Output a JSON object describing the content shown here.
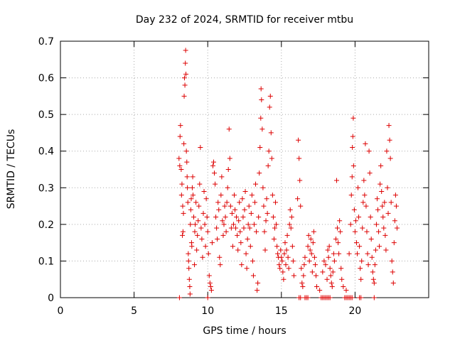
{
  "chart_data": {
    "type": "scatter",
    "title": "Day 232 of 2024, SRMTID for receiver mtbu",
    "xlabel": "GPS time / hours",
    "ylabel": "SRMTID / TECUs",
    "xlim": [
      0,
      25
    ],
    "ylim": [
      0,
      0.7
    ],
    "xticks": [
      0,
      5,
      10,
      15,
      20
    ],
    "yticks": [
      0,
      0.1,
      0.2,
      0.3,
      0.4,
      0.5,
      0.6,
      0.7
    ],
    "ytick_labels": [
      "0",
      "0.1",
      "0.2",
      "0.3",
      "0.4",
      "0.5",
      "0.6",
      "0.7"
    ],
    "grid": true,
    "marker": "+",
    "series_color": "#dd0000",
    "points": [
      [
        8.05,
        0.38
      ],
      [
        8.1,
        0.36
      ],
      [
        8.12,
        0.44
      ],
      [
        8.15,
        0.47
      ],
      [
        8.2,
        0.35
      ],
      [
        8.22,
        0.28
      ],
      [
        8.25,
        0.31
      ],
      [
        8.28,
        0.17
      ],
      [
        8.3,
        0.25
      ],
      [
        8.32,
        0.18
      ],
      [
        8.35,
        0.23
      ],
      [
        8.38,
        0.42
      ],
      [
        8.4,
        0.55
      ],
      [
        8.42,
        0.6
      ],
      [
        8.45,
        0.58
      ],
      [
        8.48,
        0.64
      ],
      [
        8.5,
        0.675
      ],
      [
        8.52,
        0.61
      ],
      [
        8.55,
        0.4
      ],
      [
        8.58,
        0.37
      ],
      [
        8.6,
        0.33
      ],
      [
        8.62,
        0.3
      ],
      [
        8.65,
        0.26
      ],
      [
        8.68,
        0.12
      ],
      [
        8.7,
        0.1
      ],
      [
        8.72,
        0.08
      ],
      [
        8.75,
        0.05
      ],
      [
        8.78,
        0.03
      ],
      [
        8.8,
        0.01
      ],
      [
        8.82,
        0.2
      ],
      [
        8.85,
        0.24
      ],
      [
        8.88,
        0.27
      ],
      [
        8.9,
        0.15
      ],
      [
        8.92,
        0.14
      ],
      [
        8.95,
        0.3
      ],
      [
        8.98,
        0.33
      ],
      [
        9.0,
        0.28
      ],
      [
        9.05,
        0.22
      ],
      [
        9.1,
        0.09
      ],
      [
        9.12,
        0.18
      ],
      [
        9.15,
        0.2
      ],
      [
        9.2,
        0.26
      ],
      [
        9.25,
        0.13
      ],
      [
        9.3,
        0.17
      ],
      [
        9.35,
        0.21
      ],
      [
        9.4,
        0.25
      ],
      [
        9.45,
        0.31
      ],
      [
        9.5,
        0.41
      ],
      [
        9.55,
        0.19
      ],
      [
        9.6,
        0.16
      ],
      [
        9.65,
        0.11
      ],
      [
        9.7,
        0.23
      ],
      [
        9.75,
        0.29
      ],
      [
        9.8,
        0.2
      ],
      [
        9.85,
        0.14
      ],
      [
        9.9,
        0.27
      ],
      [
        9.95,
        0.22
      ],
      [
        10.0,
        0.18
      ],
      [
        10.05,
        0.12
      ],
      [
        10.1,
        0.06
      ],
      [
        10.15,
        0.04
      ],
      [
        10.2,
        0.03
      ],
      [
        10.25,
        0.02
      ],
      [
        10.3,
        0.15
      ],
      [
        10.35,
        0.36
      ],
      [
        10.4,
        0.37
      ],
      [
        10.45,
        0.34
      ],
      [
        10.5,
        0.31
      ],
      [
        10.55,
        0.22
      ],
      [
        10.6,
        0.19
      ],
      [
        10.65,
        0.16
      ],
      [
        10.7,
        0.26
      ],
      [
        10.75,
        0.24
      ],
      [
        10.8,
        0.11
      ],
      [
        10.85,
        0.09
      ],
      [
        10.9,
        0.28
      ],
      [
        10.95,
        0.33
      ],
      [
        11.0,
        0.21
      ],
      [
        11.05,
        0.17
      ],
      [
        11.1,
        0.2
      ],
      [
        11.15,
        0.25
      ],
      [
        11.2,
        0.22
      ],
      [
        11.25,
        0.18
      ],
      [
        11.3,
        0.26
      ],
      [
        11.35,
        0.3
      ],
      [
        11.4,
        0.35
      ],
      [
        11.45,
        0.46
      ],
      [
        11.5,
        0.38
      ],
      [
        11.55,
        0.25
      ],
      [
        11.6,
        0.19
      ],
      [
        11.65,
        0.23
      ],
      [
        11.7,
        0.14
      ],
      [
        11.75,
        0.2
      ],
      [
        11.8,
        0.28
      ],
      [
        11.85,
        0.24
      ],
      [
        11.9,
        0.19
      ],
      [
        11.95,
        0.22
      ],
      [
        12.0,
        0.17
      ],
      [
        12.05,
        0.13
      ],
      [
        12.1,
        0.21
      ],
      [
        12.15,
        0.26
      ],
      [
        12.2,
        0.18
      ],
      [
        12.25,
        0.15
      ],
      [
        12.3,
        0.09
      ],
      [
        12.35,
        0.27
      ],
      [
        12.4,
        0.22
      ],
      [
        12.45,
        0.19
      ],
      [
        12.5,
        0.24
      ],
      [
        12.55,
        0.29
      ],
      [
        12.6,
        0.12
      ],
      [
        12.65,
        0.08
      ],
      [
        12.7,
        0.16
      ],
      [
        12.75,
        0.2
      ],
      [
        12.8,
        0.25
      ],
      [
        12.85,
        0.19
      ],
      [
        12.9,
        0.14
      ],
      [
        12.95,
        0.23
      ],
      [
        13.0,
        0.28
      ],
      [
        13.05,
        0.1
      ],
      [
        13.1,
        0.06
      ],
      [
        13.15,
        0.2
      ],
      [
        13.2,
        0.26
      ],
      [
        13.25,
        0.31
      ],
      [
        13.3,
        0.18
      ],
      [
        13.35,
        0.02
      ],
      [
        13.4,
        0.04
      ],
      [
        13.45,
        0.22
      ],
      [
        13.5,
        0.34
      ],
      [
        13.55,
        0.41
      ],
      [
        13.6,
        0.49
      ],
      [
        13.62,
        0.57
      ],
      [
        13.65,
        0.54
      ],
      [
        13.7,
        0.46
      ],
      [
        13.75,
        0.3
      ],
      [
        13.8,
        0.25
      ],
      [
        13.85,
        0.18
      ],
      [
        13.9,
        0.13
      ],
      [
        13.95,
        0.21
      ],
      [
        14.0,
        0.27
      ],
      [
        14.05,
        0.23
      ],
      [
        14.1,
        0.36
      ],
      [
        14.15,
        0.4
      ],
      [
        14.2,
        0.52
      ],
      [
        14.25,
        0.55
      ],
      [
        14.3,
        0.45
      ],
      [
        14.35,
        0.38
      ],
      [
        14.4,
        0.28
      ],
      [
        14.45,
        0.22
      ],
      [
        14.5,
        0.16
      ],
      [
        14.55,
        0.19
      ],
      [
        14.6,
        0.26
      ],
      [
        14.65,
        0.2
      ],
      [
        14.7,
        0.14
      ],
      [
        14.75,
        0.12
      ],
      [
        14.8,
        0.11
      ],
      [
        14.85,
        0.09
      ],
      [
        14.9,
        0.08
      ],
      [
        14.95,
        0.13
      ],
      [
        15.0,
        0.11
      ],
      [
        15.05,
        0.1
      ],
      [
        15.1,
        0.07
      ],
      [
        15.15,
        0.05
      ],
      [
        15.2,
        0.12
      ],
      [
        15.25,
        0.15
      ],
      [
        15.3,
        0.09
      ],
      [
        15.35,
        0.13
      ],
      [
        15.4,
        0.17
      ],
      [
        15.45,
        0.11
      ],
      [
        15.5,
        0.08
      ],
      [
        15.55,
        0.2
      ],
      [
        15.6,
        0.24
      ],
      [
        15.65,
        0.19
      ],
      [
        15.7,
        0.22
      ],
      [
        15.75,
        0.14
      ],
      [
        15.8,
        0.1
      ],
      [
        15.85,
        0.06
      ],
      [
        16.1,
        0.27
      ],
      [
        16.15,
        0.43
      ],
      [
        16.2,
        0.38
      ],
      [
        16.25,
        0.32
      ],
      [
        16.3,
        0.25
      ],
      [
        16.35,
        0.08
      ],
      [
        16.4,
        0.04
      ],
      [
        16.45,
        0.03
      ],
      [
        16.5,
        0.06
      ],
      [
        16.55,
        0.09
      ],
      [
        16.6,
        0.11
      ],
      [
        16.8,
        0.14
      ],
      [
        16.85,
        0.17
      ],
      [
        16.9,
        0.1
      ],
      [
        16.95,
        0.13
      ],
      [
        17.0,
        0.16
      ],
      [
        17.05,
        0.12
      ],
      [
        17.1,
        0.07
      ],
      [
        17.15,
        0.15
      ],
      [
        17.2,
        0.18
      ],
      [
        17.25,
        0.11
      ],
      [
        17.3,
        0.09
      ],
      [
        17.35,
        0.06
      ],
      [
        17.4,
        0.03
      ],
      [
        17.6,
        0.02
      ],
      [
        17.8,
        0.07
      ],
      [
        17.9,
        0.1
      ],
      [
        18.0,
        0.09
      ],
      [
        18.1,
        0.05
      ],
      [
        18.15,
        0.13
      ],
      [
        18.2,
        0.11
      ],
      [
        18.25,
        0.14
      ],
      [
        18.3,
        0.08
      ],
      [
        18.35,
        0.06
      ],
      [
        18.4,
        0.04
      ],
      [
        18.45,
        0.03
      ],
      [
        18.5,
        0.07
      ],
      [
        18.55,
        0.12
      ],
      [
        18.6,
        0.1
      ],
      [
        18.7,
        0.16
      ],
      [
        18.75,
        0.32
      ],
      [
        18.8,
        0.19
      ],
      [
        18.85,
        0.15
      ],
      [
        18.9,
        0.12
      ],
      [
        18.95,
        0.21
      ],
      [
        19.0,
        0.18
      ],
      [
        19.05,
        0.08
      ],
      [
        19.1,
        0.05
      ],
      [
        19.2,
        0.03
      ],
      [
        19.4,
        0.02
      ],
      [
        19.6,
        0.12
      ],
      [
        19.7,
        0.2
      ],
      [
        19.75,
        0.28
      ],
      [
        19.8,
        0.33
      ],
      [
        19.82,
        0.41
      ],
      [
        19.85,
        0.44
      ],
      [
        19.88,
        0.49
      ],
      [
        19.9,
        0.36
      ],
      [
        19.95,
        0.24
      ],
      [
        20.0,
        0.18
      ],
      [
        20.05,
        0.21
      ],
      [
        20.1,
        0.15
      ],
      [
        20.15,
        0.12
      ],
      [
        20.2,
        0.3
      ],
      [
        20.25,
        0.22
      ],
      [
        20.3,
        0.14
      ],
      [
        20.35,
        0.08
      ],
      [
        20.4,
        0.05
      ],
      [
        20.45,
        0.1
      ],
      [
        20.5,
        0.19
      ],
      [
        20.55,
        0.26
      ],
      [
        20.6,
        0.32
      ],
      [
        20.65,
        0.28
      ],
      [
        20.7,
        0.42
      ],
      [
        20.75,
        0.25
      ],
      [
        20.8,
        0.18
      ],
      [
        20.85,
        0.12
      ],
      [
        20.9,
        0.09
      ],
      [
        20.95,
        0.4
      ],
      [
        21.0,
        0.34
      ],
      [
        21.05,
        0.22
      ],
      [
        21.1,
        0.16
      ],
      [
        21.15,
        0.11
      ],
      [
        21.2,
        0.07
      ],
      [
        21.25,
        0.05
      ],
      [
        21.3,
        0.04
      ],
      [
        21.35,
        0.09
      ],
      [
        21.4,
        0.13
      ],
      [
        21.45,
        0.2
      ],
      [
        21.5,
        0.27
      ],
      [
        21.55,
        0.24
      ],
      [
        21.6,
        0.18
      ],
      [
        21.65,
        0.14
      ],
      [
        21.7,
        0.31
      ],
      [
        21.75,
        0.36
      ],
      [
        21.8,
        0.29
      ],
      [
        21.85,
        0.25
      ],
      [
        21.9,
        0.22
      ],
      [
        21.95,
        0.19
      ],
      [
        22.0,
        0.26
      ],
      [
        22.05,
        0.17
      ],
      [
        22.1,
        0.13
      ],
      [
        22.15,
        0.4
      ],
      [
        22.2,
        0.3
      ],
      [
        22.25,
        0.23
      ],
      [
        22.3,
        0.47
      ],
      [
        22.35,
        0.43
      ],
      [
        22.4,
        0.38
      ],
      [
        22.45,
        0.26
      ],
      [
        22.5,
        0.1
      ],
      [
        22.55,
        0.07
      ],
      [
        22.6,
        0.04
      ],
      [
        22.65,
        0.15
      ],
      [
        22.7,
        0.21
      ],
      [
        22.75,
        0.28
      ],
      [
        22.8,
        0.25
      ],
      [
        22.85,
        0.19
      ],
      [
        8.08,
        0.0
      ],
      [
        10.0,
        0.0
      ],
      [
        16.2,
        0.0
      ],
      [
        16.3,
        0.0
      ],
      [
        16.6,
        0.0
      ],
      [
        16.7,
        0.0
      ],
      [
        16.8,
        0.0
      ],
      [
        17.7,
        0.0
      ],
      [
        17.8,
        0.0
      ],
      [
        17.9,
        0.0
      ],
      [
        18.0,
        0.0
      ],
      [
        18.1,
        0.0
      ],
      [
        18.2,
        0.0
      ],
      [
        18.3,
        0.0
      ],
      [
        19.3,
        0.0
      ],
      [
        19.4,
        0.0
      ],
      [
        19.5,
        0.0
      ],
      [
        19.6,
        0.0
      ],
      [
        19.7,
        0.0
      ],
      [
        19.8,
        0.0
      ],
      [
        20.3,
        0.0
      ],
      [
        20.4,
        0.0
      ],
      [
        21.3,
        0.0
      ]
    ]
  }
}
